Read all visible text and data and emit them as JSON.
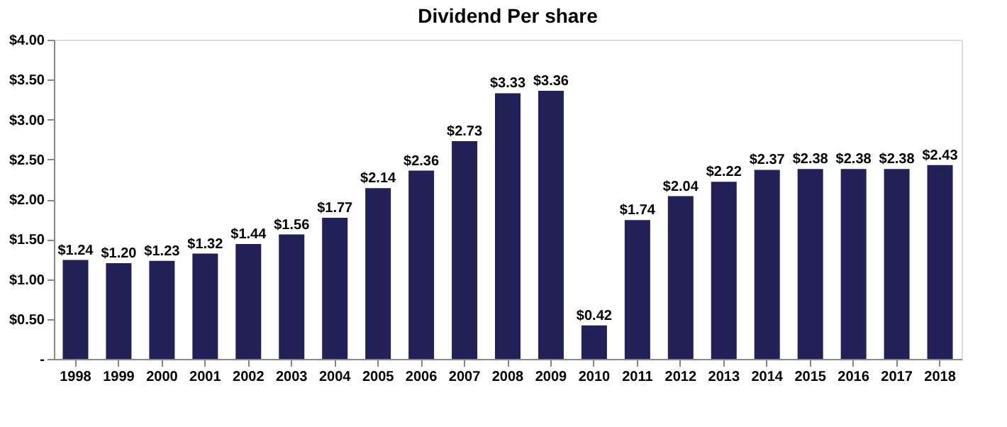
{
  "chart_data": {
    "type": "bar",
    "title": "Dividend Per share",
    "categories": [
      "1998",
      "1999",
      "2000",
      "2001",
      "2002",
      "2003",
      "2004",
      "2005",
      "2006",
      "2007",
      "2008",
      "2009",
      "2010",
      "2011",
      "2012",
      "2013",
      "2014",
      "2015",
      "2016",
      "2017",
      "2018"
    ],
    "values": [
      1.24,
      1.2,
      1.23,
      1.32,
      1.44,
      1.56,
      1.77,
      2.14,
      2.36,
      2.73,
      3.33,
      3.36,
      0.42,
      1.74,
      2.04,
      2.22,
      2.37,
      2.38,
      2.38,
      2.38,
      2.43
    ],
    "value_labels": [
      "$1.24",
      "$1.20",
      "$1.23",
      "$1.32",
      "$1.44",
      "$1.56",
      "$1.77",
      "$2.14",
      "$2.36",
      "$2.73",
      "$3.33",
      "$3.36",
      "$0.42",
      "$1.74",
      "$2.04",
      "$2.22",
      "$2.37",
      "$2.38",
      "$2.38",
      "$2.38",
      "$2.43"
    ],
    "color": "#212057",
    "ylim": [
      0,
      4
    ],
    "yticks": [
      {
        "value": 0,
        "label": "-"
      },
      {
        "value": 0.5,
        "label": "$0.50"
      },
      {
        "value": 1,
        "label": "$1.00"
      },
      {
        "value": 1.5,
        "label": "$1.50"
      },
      {
        "value": 2,
        "label": "$2.00"
      },
      {
        "value": 2.5,
        "label": "$2.50"
      },
      {
        "value": 3,
        "label": "$3.00"
      },
      {
        "value": 3.5,
        "label": "$3.50"
      },
      {
        "value": 4,
        "label": "$4.00"
      }
    ],
    "grid": false
  }
}
